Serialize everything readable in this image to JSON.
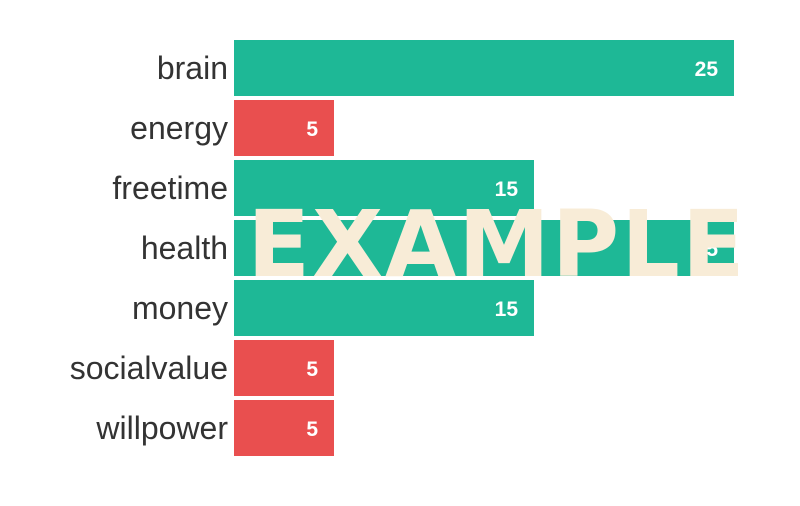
{
  "chart_data": {
    "type": "bar",
    "orientation": "horizontal",
    "categories": [
      "brain",
      "energy",
      "freetime",
      "health",
      "money",
      "socialvalue",
      "willpower"
    ],
    "values": [
      25,
      5,
      15,
      25,
      15,
      5,
      5
    ],
    "title": "",
    "xlabel": "",
    "ylabel": "",
    "xlim": [
      0,
      25
    ],
    "grid": false,
    "legend": "none",
    "colors": {
      "high": "#1eb896",
      "low": "#e94f4f"
    },
    "bar_colors": [
      "#1eb896",
      "#e94f4f",
      "#1eb896",
      "#1eb896",
      "#1eb896",
      "#e94f4f",
      "#e94f4f"
    ]
  },
  "watermark": {
    "text": "EXAMPLE",
    "color": "#f8ecd7"
  }
}
